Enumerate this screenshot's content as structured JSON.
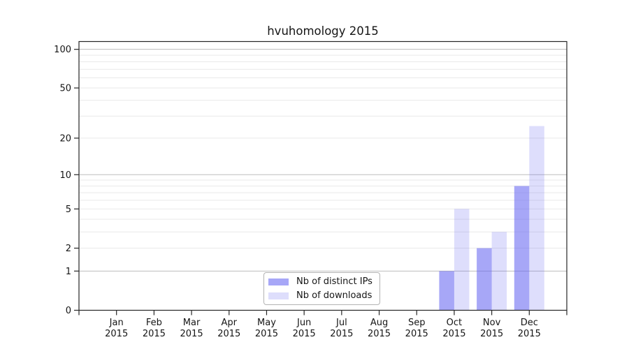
{
  "chart_data": {
    "type": "bar",
    "title": "hvuhomology 2015",
    "categories": [
      "Jan",
      "Feb",
      "Mar",
      "Apr",
      "May",
      "Jun",
      "Jul",
      "Aug",
      "Sep",
      "Oct",
      "Nov",
      "Dec"
    ],
    "year_label": "2015",
    "series": [
      {
        "name": "Nb of distinct IPs",
        "color": "#a7a7f7",
        "fill": "rgba(98,98,240,0.56)",
        "values": [
          0,
          0,
          0,
          0,
          0,
          0,
          0,
          0,
          0,
          1,
          2,
          8
        ]
      },
      {
        "name": "Nb of downloads",
        "color": "#dcdcf9",
        "fill": "rgba(98,98,240,0.21)",
        "values": [
          0,
          0,
          0,
          0,
          0,
          0,
          0,
          0,
          0,
          5,
          3,
          25
        ]
      }
    ],
    "y_scale": "log1p",
    "ylim": [
      0,
      115
    ],
    "y_ticks": [
      0,
      1,
      2,
      5,
      10,
      20,
      50,
      100
    ],
    "y_major_gridlines": [
      1,
      10,
      100
    ],
    "y_minor_gridlines": [
      2,
      3,
      4,
      5,
      6,
      7,
      8,
      9,
      20,
      30,
      40,
      50,
      60,
      70,
      80,
      90
    ],
    "grid": "on",
    "legend_position": "inside-bottom-center",
    "xlabel": "",
    "ylabel": ""
  },
  "colors": {
    "background": "#ffffff",
    "spine": "#262626",
    "tick_text": "#151515",
    "grid_major": "#bdbdbd",
    "grid_minor": "#e9e9e9",
    "bar_distinct_ips": "#a7a7f7",
    "bar_downloads": "#dcdcf9"
  }
}
